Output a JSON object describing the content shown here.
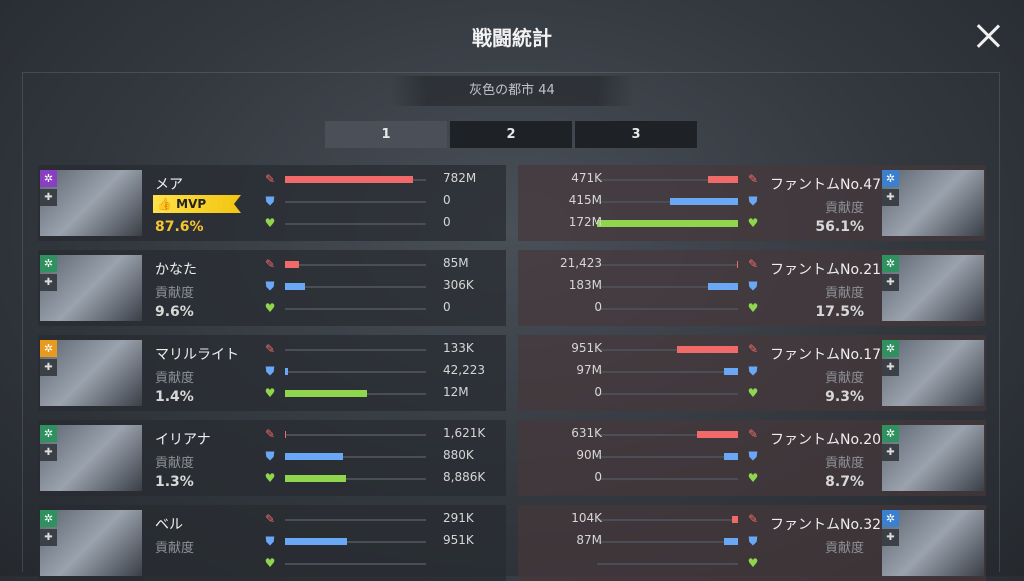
{
  "header": {
    "title": "戦闘統計",
    "subtitle": "灰色の都市 44",
    "close_icon": "close-icon"
  },
  "tabs": [
    {
      "label": "1",
      "selected": true
    },
    {
      "label": "2",
      "selected": false
    },
    {
      "label": "3",
      "selected": false
    }
  ],
  "colors": {
    "attack": "#f06a6a",
    "defense": "#6aa8f5",
    "heal": "#8fd64e",
    "mvp": "#f4c431"
  },
  "contribution_label": "貢献度",
  "mvp_label": "MVP",
  "allies": [
    {
      "name": "メア",
      "mvp": true,
      "pct": "87.6%",
      "class_color": "#8a3fc2",
      "attack": "782M",
      "defense": "0",
      "heal": "0",
      "bars": [
        0.91,
        0,
        0
      ]
    },
    {
      "name": "かなた",
      "pct": "9.6%",
      "class_color": "#2f9060",
      "attack": "85M",
      "defense": "306K",
      "heal": "0",
      "bars": [
        0.1,
        0.14,
        0
      ]
    },
    {
      "name": "マリルライト",
      "pct": "1.4%",
      "class_color": "#e79a1e",
      "attack": "133K",
      "defense": "42,223",
      "heal": "12M",
      "bars": [
        0,
        0.02,
        0.58
      ]
    },
    {
      "name": "イリアナ",
      "pct": "1.3%",
      "class_color": "#2f9060",
      "attack": "1,621K",
      "defense": "880K",
      "heal": "8,886K",
      "bars": [
        0.005,
        0.41,
        0.43
      ]
    },
    {
      "name": "ベル",
      "pct": "",
      "class_color": "#2f9060",
      "attack": "291K",
      "defense": "951K",
      "heal": "",
      "bars": [
        0,
        0.44,
        0
      ]
    }
  ],
  "enemies": [
    {
      "name": "ファントムNo.47",
      "pct": "56.1%",
      "class_color": "#3b7fcf",
      "attack": "471K",
      "defense": "415M",
      "heal": "172M",
      "bars": [
        0.21,
        0.48,
        1.0
      ]
    },
    {
      "name": "ファントムNo.21",
      "pct": "17.5%",
      "class_color": "#2f9060",
      "attack": "21,423",
      "defense": "183M",
      "heal": "0",
      "bars": [
        0.01,
        0.21,
        0
      ]
    },
    {
      "name": "ファントムNo.17",
      "pct": "9.3%",
      "class_color": "#2f9060",
      "attack": "951K",
      "defense": "97M",
      "heal": "0",
      "bars": [
        0.43,
        0.1,
        0
      ]
    },
    {
      "name": "ファントムNo.20",
      "pct": "8.7%",
      "class_color": "#2f9060",
      "attack": "631K",
      "defense": "90M",
      "heal": "0",
      "bars": [
        0.29,
        0.1,
        0
      ]
    },
    {
      "name": "ファントムNo.32",
      "pct": "",
      "class_color": "#3b7fcf",
      "attack": "104K",
      "defense": "87M",
      "heal": "",
      "bars": [
        0.04,
        0.1,
        0
      ]
    }
  ]
}
